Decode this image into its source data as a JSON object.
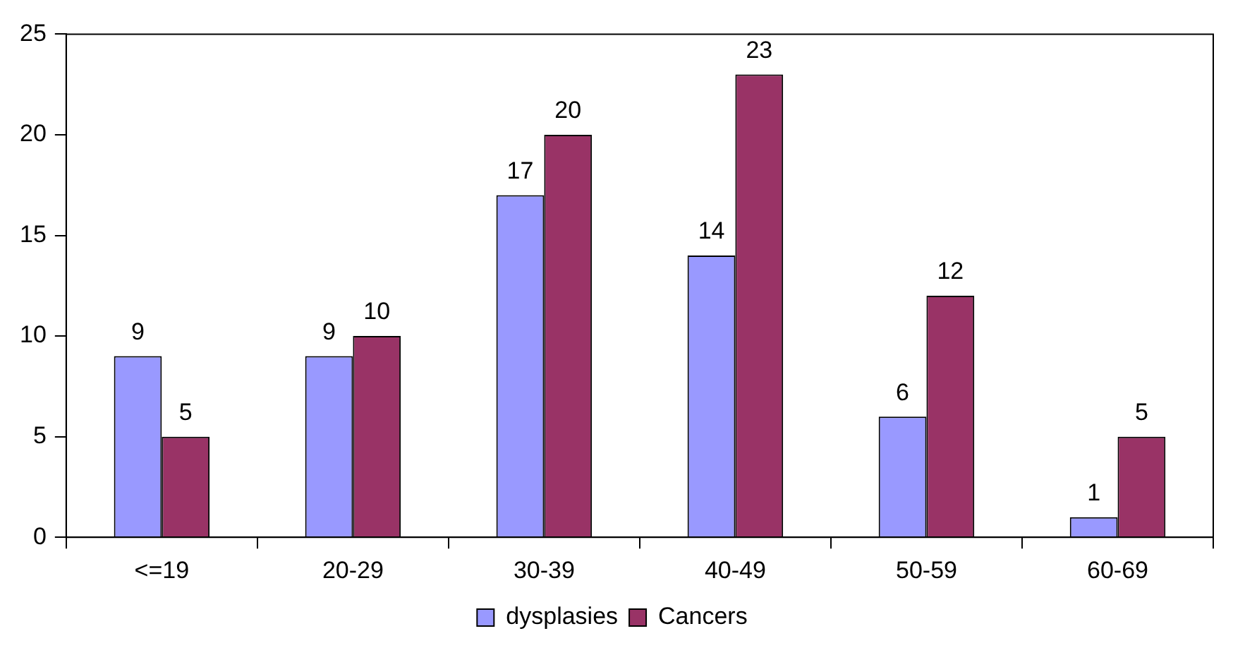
{
  "chart_data": {
    "type": "bar",
    "categories": [
      "<=19",
      "20-29",
      "30-39",
      "40-49",
      "50-59",
      "60-69"
    ],
    "series": [
      {
        "name": "dysplasies",
        "color": "#9999ff",
        "values": [
          9,
          9,
          17,
          14,
          6,
          1
        ]
      },
      {
        "name": "Cancers",
        "color": "#993366",
        "values": [
          5,
          10,
          20,
          23,
          12,
          5
        ]
      }
    ],
    "ylim": [
      0,
      25
    ],
    "yticks": [
      0,
      5,
      10,
      15,
      20,
      25
    ],
    "grid": false,
    "legend": "bottom",
    "data_labels": true
  }
}
